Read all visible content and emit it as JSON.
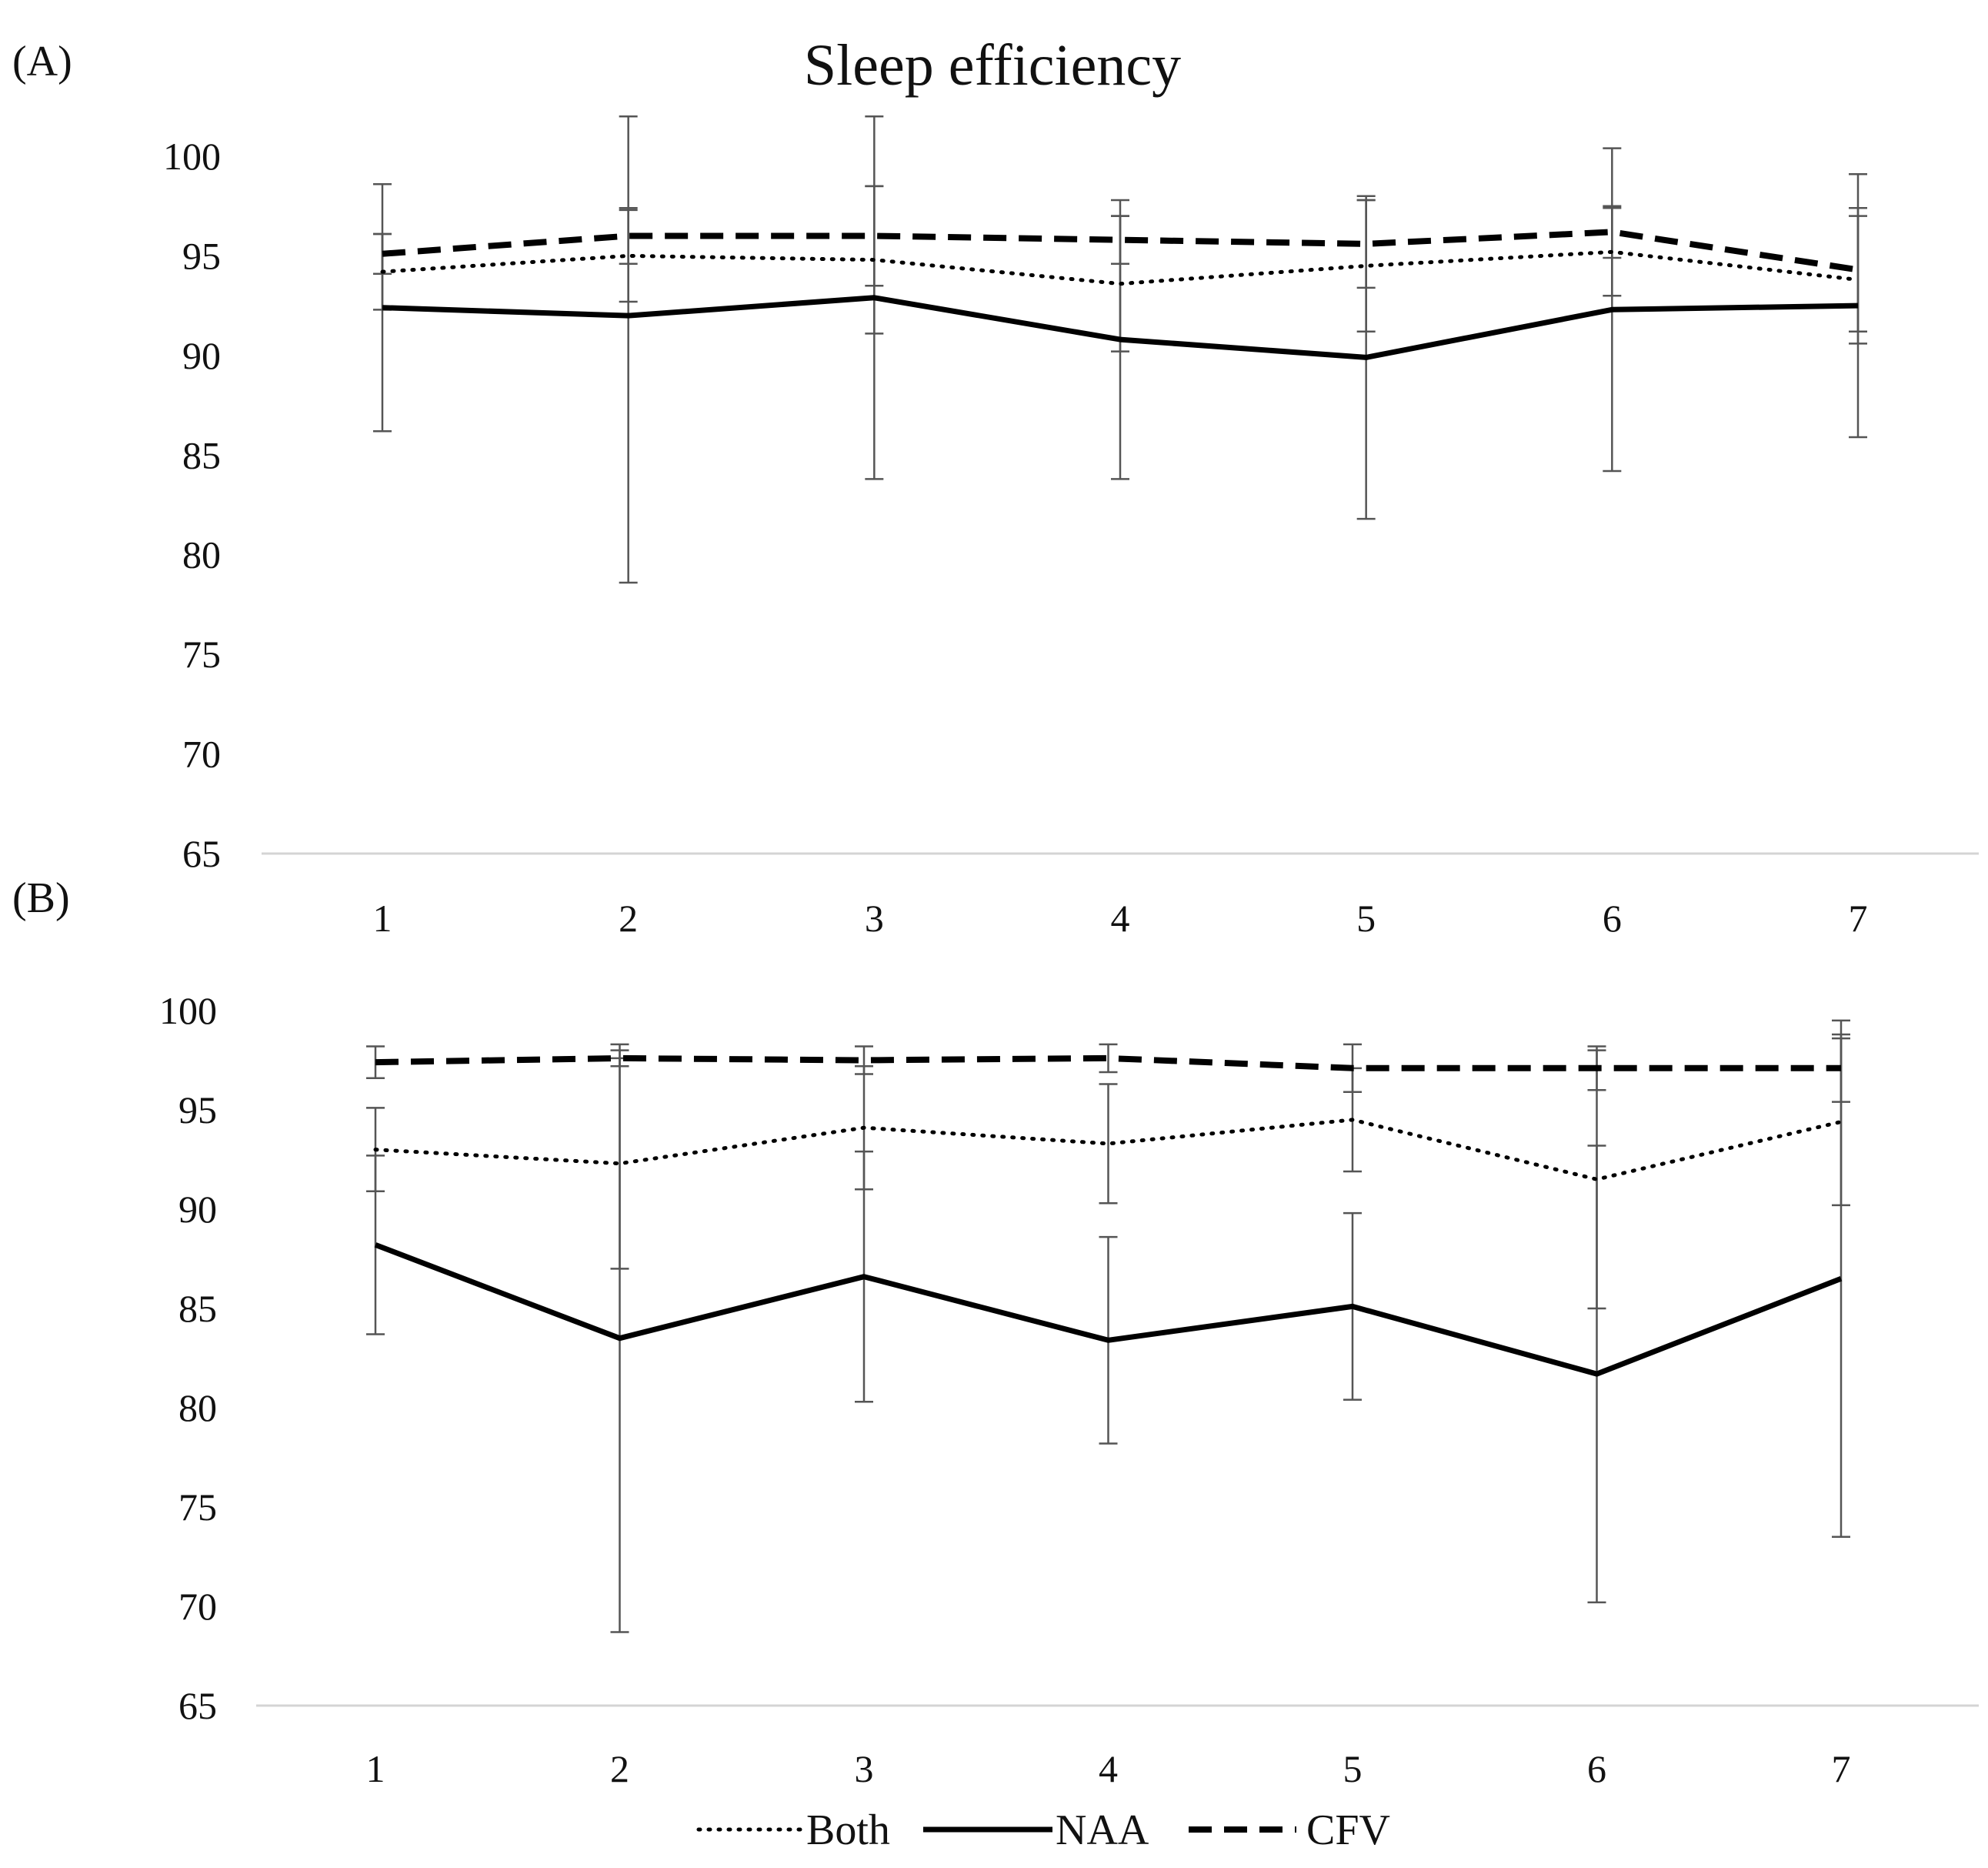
{
  "chart_data": [
    {
      "panel_label": "(A)",
      "title": "Sleep efficiency",
      "type": "line",
      "x": [
        1,
        2,
        3,
        4,
        5,
        6,
        7
      ],
      "ylim": [
        65,
        100
      ],
      "yticks": [
        65,
        70,
        75,
        80,
        85,
        90,
        95,
        100
      ],
      "grid": false,
      "series": [
        {
          "name": "Both",
          "style": "dotted",
          "values": [
            94.2,
            95.0,
            94.8,
            93.6,
            94.5,
            95.2,
            93.8
          ],
          "error": [
            1.9,
            2.3,
            3.7,
            3.4,
            3.3,
            2.2,
            3.2
          ]
        },
        {
          "name": "NAA",
          "style": "solid",
          "values": [
            92.4,
            92.0,
            92.9,
            90.8,
            89.9,
            92.3,
            92.5
          ],
          "error": [
            6.2,
            13.4,
            9.1,
            7.0,
            8.1,
            8.1,
            6.6
          ]
        },
        {
          "name": "CFV",
          "style": "dashed",
          "values": [
            95.1,
            96.0,
            96.0,
            95.8,
            95.6,
            96.2,
            94.3
          ],
          "error": [
            1.0,
            1.4,
            2.5,
            1.2,
            2.2,
            1.3,
            3.1
          ]
        }
      ]
    },
    {
      "panel_label": "(B)",
      "title": "",
      "type": "line",
      "x": [
        1,
        2,
        3,
        4,
        5,
        6,
        7
      ],
      "ylim": [
        65,
        100
      ],
      "yticks": [
        65,
        70,
        75,
        80,
        85,
        90,
        95,
        100
      ],
      "grid": false,
      "series": [
        {
          "name": "Both",
          "style": "dotted",
          "values": [
            93.0,
            92.3,
            94.1,
            93.3,
            94.5,
            91.5,
            94.4
          ],
          "error": [
            2.1,
            5.3,
            3.1,
            3.0,
            2.6,
            6.5,
            4.2
          ]
        },
        {
          "name": "NAA",
          "style": "solid",
          "values": [
            88.2,
            83.5,
            86.6,
            83.4,
            85.1,
            81.7,
            86.5
          ],
          "error": [
            4.5,
            14.8,
            6.3,
            5.2,
            4.7,
            11.5,
            13.0
          ]
        },
        {
          "name": "CFV",
          "style": "dashed",
          "values": [
            97.4,
            97.6,
            97.5,
            97.6,
            97.1,
            97.1,
            97.1
          ],
          "error": [
            0.8,
            0.4,
            0.7,
            0.7,
            1.2,
            1.1,
            1.7
          ]
        }
      ]
    }
  ],
  "legend": {
    "placement": "bottom-center",
    "entries": [
      "Both",
      "NAA",
      "CFV"
    ]
  }
}
